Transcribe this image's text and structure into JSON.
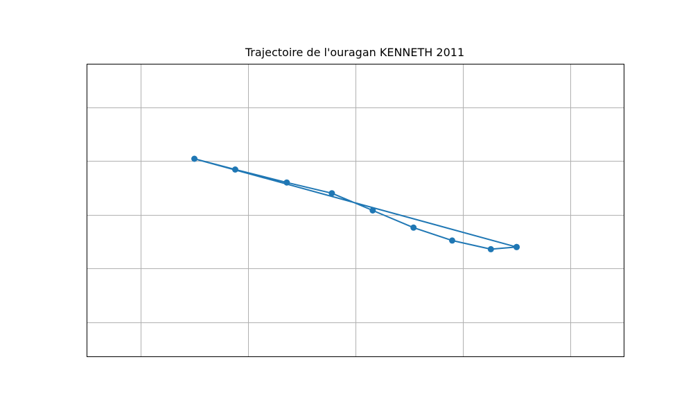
{
  "chart_data": {
    "type": "line",
    "title": "Trajectoire de l'ouragan KENNETH 2011",
    "xlabel": "",
    "ylabel": "",
    "grid": true,
    "axes_visible_ticks": false,
    "xlim": [
      -120.0,
      -95.0
    ],
    "ylim": [
      2.7,
      16.3
    ],
    "gridlines_x": [
      -117.5,
      -112.5,
      -107.5,
      -102.5,
      -97.5
    ],
    "gridlines_y": [
      4.3,
      6.8,
      9.3,
      11.8,
      14.3
    ],
    "series": [
      {
        "marker": "circle",
        "color": "#1f77b4",
        "x": [
          -100.0,
          -101.2,
          -103.0,
          -104.8,
          -106.7,
          -108.6,
          -110.7,
          -113.1,
          -115.0,
          -100.0
        ],
        "y": [
          7.8,
          7.7,
          8.1,
          8.7,
          9.5,
          10.3,
          10.8,
          11.4,
          11.9,
          7.8
        ]
      }
    ]
  }
}
